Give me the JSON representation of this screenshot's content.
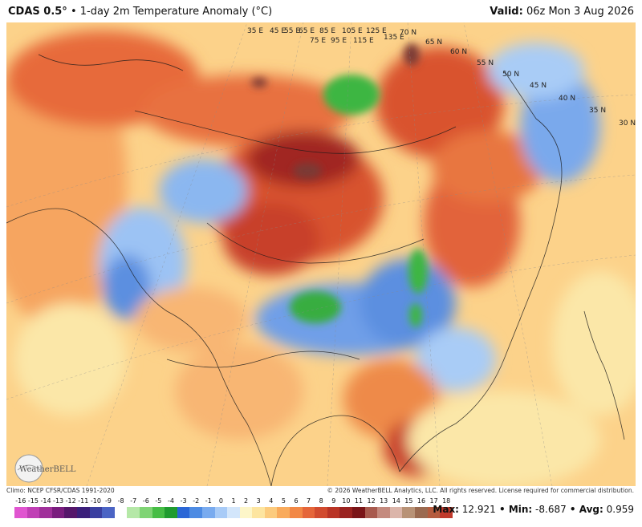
{
  "header": {
    "brand": "CDAS 0.5°",
    "title": " • 1-day 2m Temperature Anomaly (°C)",
    "valid_label": "Valid:",
    "valid_value": " 06z Mon 3 Aug 2026"
  },
  "map": {
    "lat_labels": [
      "70 N",
      "65 N",
      "60 N",
      "55 N",
      "50 N",
      "45 N",
      "40 N",
      "35 N",
      "30 N"
    ],
    "lon_labels": [
      "35 E",
      "45 E",
      "55 E",
      "65 E",
      "75 E",
      "85 E",
      "95 E",
      "105 E",
      "115 E",
      "125 E",
      "135 E"
    ],
    "logo_text": "WeatherBELL"
  },
  "footer": {
    "climo": "Climo: NCEP CFSR/CDAS 1991-2020",
    "copyright": "© 2026 WeatherBELL Analytics, LLC. All rights reserved. License required for commercial distribution."
  },
  "colorbar": {
    "ticks": [
      "-16",
      "-15",
      "-14",
      "-13",
      "-12",
      "-11",
      "-10",
      "-9",
      "-8",
      "-7",
      "-6",
      "-5",
      "-4",
      "-3",
      "-2",
      "-1",
      "0",
      "1",
      "2",
      "3",
      "4",
      "5",
      "6",
      "7",
      "8",
      "9",
      "10",
      "11",
      "12",
      "13",
      "14",
      "15",
      "16",
      "17",
      "18"
    ],
    "colors": [
      "#e055d0",
      "#c03fb5",
      "#a0309a",
      "#7a1d7e",
      "#55166a",
      "#3b1f7a",
      "#3a3fa0",
      "#4b64c4",
      "#ffffff",
      "#b5e8a7",
      "#7fd474",
      "#46bd45",
      "#1f9b2f",
      "#2a66d6",
      "#4d8be3",
      "#79abef",
      "#a8cbf7",
      "#d3e6fb",
      "#fdf6c9",
      "#fde5a0",
      "#fccb7d",
      "#f9ab5c",
      "#f28846",
      "#e5663a",
      "#d14b2f",
      "#b93426",
      "#9a2320",
      "#7a1518",
      "#a85a4e",
      "#c48a7e",
      "#dbb5aa",
      "#b89276",
      "#9a6a50",
      "#b55c3e",
      "#c0392b"
    ]
  },
  "stats": {
    "max_label": "Max:",
    "max": " 12.921",
    "min_label": " • Min:",
    "min": " -8.687",
    "avg_label": " • Avg:",
    "avg": " 0.959"
  }
}
